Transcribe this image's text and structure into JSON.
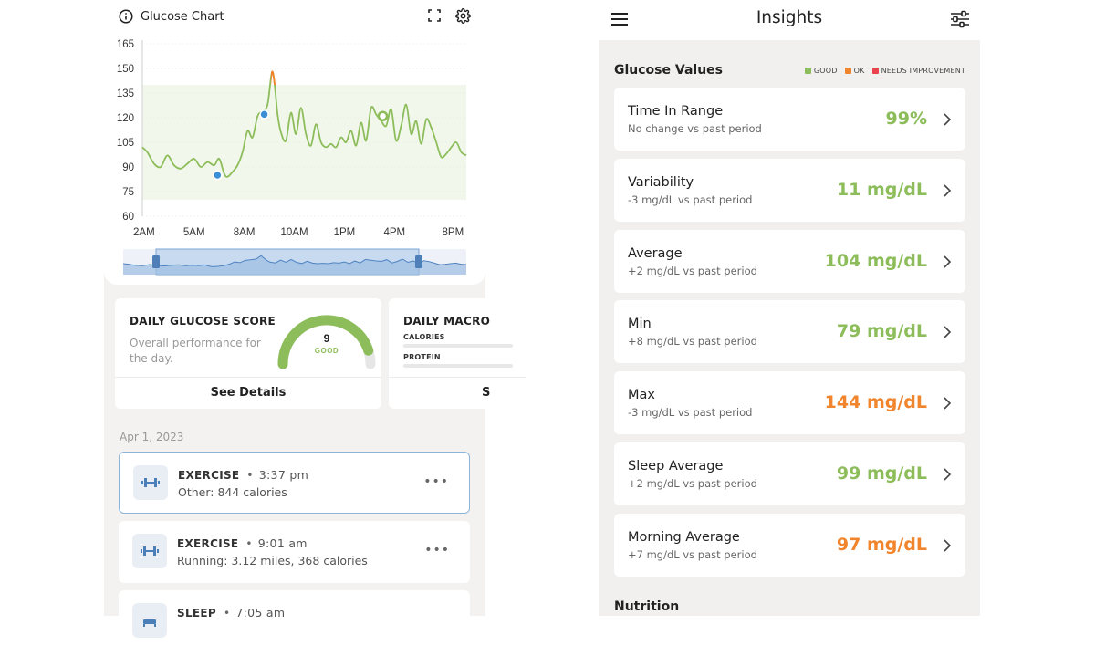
{
  "colors": {
    "good": "#8cbd5a",
    "ok": "#f0852d",
    "needs_improvement": "#e8434e",
    "accent_blue": "#3a8fd6"
  },
  "left": {
    "glucose_chart": {
      "title": "Glucose Chart",
      "icons": [
        "info-icon",
        "expand-icon",
        "settings-icon"
      ]
    },
    "score_card": {
      "title": "DAILY GLUCOSE SCORE",
      "description": "Overall performance for the day.",
      "score": "9",
      "rating": "GOOD",
      "score_fraction": 0.9,
      "button": "See Details"
    },
    "macro_card": {
      "title": "DAILY MACRO",
      "rows": [
        "CALORIES",
        "PROTEIN"
      ],
      "button": "S"
    },
    "date": "Apr 1, 2023",
    "log_items": [
      {
        "type": "EXERCISE",
        "time": "3:37 pm",
        "detail": "Other: 844 calories",
        "icon": "dumbbell-icon",
        "selected": true
      },
      {
        "type": "EXERCISE",
        "time": "9:01 am",
        "detail": "Running: 3.12 miles, 368 calories",
        "icon": "dumbbell-icon",
        "selected": false
      },
      {
        "type": "SLEEP",
        "time": "7:05 am",
        "detail": "",
        "icon": "sleep-icon",
        "selected": false
      }
    ],
    "more_label": "•••",
    "dot": "•"
  },
  "right": {
    "title": "Insights",
    "section_glucose": "Glucose Values",
    "legend": {
      "good": "GOOD",
      "ok": "OK",
      "needs_improvement": "NEEDS IMPROVEMENT"
    },
    "metrics": [
      {
        "name": "Time In Range",
        "sub": "No change vs past period",
        "value": "99%",
        "status": "good"
      },
      {
        "name": "Variability",
        "sub": "-3 mg/dL vs past period",
        "value": "11 mg/dL",
        "status": "good"
      },
      {
        "name": "Average",
        "sub": "+2 mg/dL vs past period",
        "value": "104 mg/dL",
        "status": "good"
      },
      {
        "name": "Min",
        "sub": "+8 mg/dL vs past period",
        "value": "79 mg/dL",
        "status": "good"
      },
      {
        "name": "Max",
        "sub": "-3 mg/dL vs past period",
        "value": "144 mg/dL",
        "status": "ok"
      },
      {
        "name": "Sleep Average",
        "sub": "+2 mg/dL vs past period",
        "value": "99 mg/dL",
        "status": "good"
      },
      {
        "name": "Morning Average",
        "sub": "+7 mg/dL vs past period",
        "value": "97 mg/dL",
        "status": "ok"
      }
    ],
    "section_nutrition": "Nutrition"
  },
  "chart_data": {
    "type": "line",
    "title": "Glucose Chart",
    "y_ticks": [
      60,
      75,
      90,
      105,
      120,
      135,
      150,
      165
    ],
    "x_ticks": [
      {
        "h": 2,
        "label": "2AM"
      },
      {
        "h": 5,
        "label": "5AM"
      },
      {
        "h": 8,
        "label": "8AM"
      },
      {
        "h": 11,
        "label": "10AM"
      },
      {
        "h": 14,
        "label": "1PM"
      },
      {
        "h": 17,
        "label": "4PM"
      },
      {
        "h": 20.5,
        "label": "8PM"
      }
    ],
    "ylim": [
      60,
      165
    ],
    "xlim": [
      1.9,
      21.3
    ],
    "target_range": [
      70,
      140
    ],
    "series": [
      {
        "x": [
          1.9,
          2.2,
          2.6,
          3.0,
          3.4,
          3.8,
          4.2,
          4.6,
          5.0,
          5.4,
          5.8,
          6.2,
          6.5,
          6.8,
          7.0,
          7.3,
          7.6,
          7.9,
          8.2,
          8.5,
          8.8,
          9.1,
          9.4,
          9.7,
          10.0,
          10.2,
          10.5,
          10.8,
          11.1,
          11.4,
          11.7,
          12.0,
          12.3,
          12.6,
          12.9,
          13.2,
          13.5,
          13.8,
          14.1,
          14.4,
          14.7,
          15.0,
          15.3,
          15.6,
          15.9,
          16.2,
          16.5,
          16.8,
          17.1,
          17.4,
          17.7,
          18.0,
          18.3,
          18.6,
          18.9,
          19.2,
          19.5,
          19.8,
          20.1,
          20.4,
          20.7,
          21.0,
          21.3
        ],
        "y": [
          102,
          99,
          92,
          90,
          97,
          91,
          89,
          92,
          95,
          90,
          93,
          91,
          95,
          86,
          84,
          87,
          91,
          99,
          112,
          108,
          121,
          124,
          128,
          148,
          122,
          111,
          106,
          123,
          110,
          126,
          110,
          103,
          116,
          105,
          102,
          104,
          102,
          108,
          105,
          112,
          103,
          117,
          106,
          126,
          122,
          118,
          115,
          125,
          106,
          115,
          128,
          110,
          118,
          104,
          119,
          114,
          105,
          96,
          98,
          102,
          105,
          99,
          97
        ]
      }
    ],
    "markers": [
      {
        "x": 6.4,
        "y": 85,
        "color": "#3a8fd6"
      },
      {
        "x": 9.2,
        "y": 122,
        "color": "#3a8fd6"
      },
      {
        "x": 16.3,
        "y": 121,
        "color": "#8cbd5a"
      }
    ],
    "ok_segment_x": [
      9.6,
      10.0
    ]
  }
}
